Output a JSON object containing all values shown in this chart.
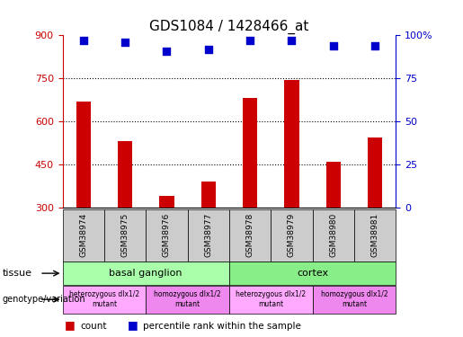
{
  "title": "GDS1084 / 1428466_at",
  "samples": [
    "GSM38974",
    "GSM38975",
    "GSM38976",
    "GSM38977",
    "GSM38978",
    "GSM38979",
    "GSM38980",
    "GSM38981"
  ],
  "bar_values": [
    670,
    530,
    340,
    390,
    680,
    745,
    460,
    545
  ],
  "percentile_values": [
    97,
    96,
    91,
    92,
    97,
    97,
    94,
    94
  ],
  "bar_color": "#cc0000",
  "percentile_color": "#0000cc",
  "ylim_left": [
    300,
    900
  ],
  "ylim_right": [
    0,
    100
  ],
  "yticks_left": [
    300,
    450,
    600,
    750,
    900
  ],
  "yticks_right": [
    0,
    25,
    50,
    75,
    100
  ],
  "ytick_right_labels": [
    "0",
    "25",
    "50",
    "75",
    "100%"
  ],
  "grid_lines": [
    450,
    600,
    750
  ],
  "tissue_groups": [
    {
      "label": "basal ganglion",
      "start": 0,
      "end": 4,
      "color": "#aaffaa"
    },
    {
      "label": "cortex",
      "start": 4,
      "end": 8,
      "color": "#88ee88"
    }
  ],
  "genotype_groups": [
    {
      "label": "heterozygous dlx1/2\nmutant",
      "start": 0,
      "end": 2,
      "color": "#ffaaff"
    },
    {
      "label": "homozygous dlx1/2\nmutant",
      "start": 2,
      "end": 4,
      "color": "#ee88ee"
    },
    {
      "label": "heterozygous dlx1/2\nmutant",
      "start": 4,
      "end": 6,
      "color": "#ffaaff"
    },
    {
      "label": "homozygous dlx1/2\nmutant",
      "start": 6,
      "end": 8,
      "color": "#ee88ee"
    }
  ],
  "tissue_label": "tissue",
  "genotype_label": "genotype/variation",
  "legend_count_label": "count",
  "legend_percentile_label": "percentile rank within the sample",
  "bar_color_red": "#cc0000",
  "pct_color_blue": "#0000cc",
  "sample_box_color": "#cccccc",
  "bar_width": 0.35
}
